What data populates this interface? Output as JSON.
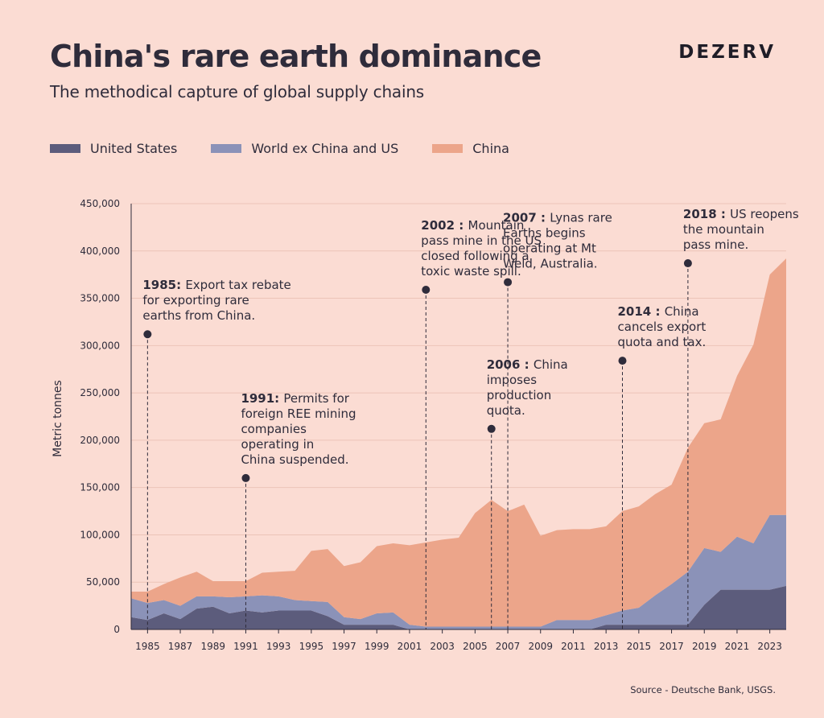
{
  "header": {
    "title": "China's rare earth dominance",
    "subtitle": "The methodical capture of global supply chains",
    "brand": "DEZERV"
  },
  "legend": [
    {
      "name": "United States",
      "color": "#5c5c7c"
    },
    {
      "name": "World ex China and US",
      "color": "#8b92b8"
    },
    {
      "name": "China",
      "color": "#eca58a"
    }
  ],
  "source": "Source - Deutsche Bank, USGS.",
  "chart_data": {
    "type": "area",
    "stacked": true,
    "ylabel": "Metric tonnes",
    "xlabel": "",
    "ylim": [
      0,
      450000
    ],
    "yticks": [
      0,
      50000,
      100000,
      150000,
      200000,
      250000,
      300000,
      350000,
      400000,
      450000
    ],
    "ytick_labels": [
      "0",
      "50,000",
      "100,000",
      "150,000",
      "200,000",
      "250,000",
      "300,000",
      "350,000",
      "400,000",
      "450,000"
    ],
    "xlim": [
      1984,
      2024
    ],
    "xticks": [
      1985,
      1987,
      1989,
      1991,
      1993,
      1995,
      1997,
      1999,
      2001,
      2003,
      2005,
      2007,
      2009,
      2011,
      2013,
      2015,
      2017,
      2019,
      2021,
      2023
    ],
    "grid": "horizontal",
    "legend_position": "top-left",
    "x": [
      1984,
      1985,
      1986,
      1987,
      1988,
      1989,
      1990,
      1991,
      1992,
      1993,
      1994,
      1995,
      1996,
      1997,
      1998,
      1999,
      2000,
      2001,
      2002,
      2003,
      2004,
      2005,
      2006,
      2007,
      2008,
      2009,
      2010,
      2011,
      2012,
      2013,
      2014,
      2015,
      2016,
      2017,
      2018,
      2019,
      2020,
      2021,
      2022,
      2023,
      2024
    ],
    "series": [
      {
        "name": "United States",
        "color": "#5c5c7c",
        "values": [
          13000,
          10000,
          17000,
          11000,
          22000,
          24000,
          17000,
          20000,
          18000,
          20000,
          20000,
          20000,
          14000,
          5000,
          5000,
          5000,
          5000,
          0,
          0,
          0,
          0,
          0,
          0,
          0,
          0,
          0,
          0,
          0,
          0,
          5000,
          5000,
          5000,
          5000,
          5000,
          5000,
          26000,
          42000,
          42000,
          42000,
          42000,
          46000
        ]
      },
      {
        "name": "World ex China and US",
        "color": "#8b92b8",
        "values": [
          20000,
          18000,
          14000,
          14000,
          13000,
          11000,
          17000,
          15000,
          18000,
          15000,
          11000,
          10000,
          15000,
          8000,
          6000,
          12000,
          13000,
          5000,
          3000,
          3000,
          3000,
          3000,
          3000,
          3000,
          3000,
          3000,
          10000,
          10000,
          10000,
          10000,
          15000,
          18000,
          31000,
          43000,
          56000,
          60000,
          40000,
          56000,
          49000,
          79000,
          75000
        ]
      },
      {
        "name": "China",
        "color": "#eca58a",
        "values": [
          7000,
          12000,
          17000,
          30000,
          26000,
          16000,
          17000,
          16000,
          24000,
          26000,
          31000,
          53000,
          56000,
          54000,
          60000,
          71000,
          73000,
          84000,
          89000,
          92000,
          94000,
          120000,
          134000,
          122000,
          129000,
          96000,
          95000,
          96000,
          96000,
          94000,
          105000,
          107000,
          107000,
          105000,
          131000,
          132000,
          140000,
          170000,
          210000,
          254000,
          271000
        ]
      }
    ],
    "annotations": [
      {
        "year": 1985,
        "value": 312000,
        "label_year": "1985:",
        "lines": [
          "Export tax rebate",
          "for exporting rare",
          "earths from China."
        ]
      },
      {
        "year": 1991,
        "value": 160000,
        "label_year": "1991:",
        "lines": [
          "Permits for",
          "foreign REE mining",
          "companies",
          "operating in",
          "China suspended."
        ]
      },
      {
        "year": 2002,
        "value": 359000,
        "label_year": "2002 :",
        "lines": [
          "Mountain",
          "pass mine in the US",
          "closed following a",
          "toxic waste spill."
        ]
      },
      {
        "year": 2006,
        "value": 212000,
        "label_year": "2006 :",
        "lines": [
          "China",
          "imposes",
          "production",
          "quota."
        ]
      },
      {
        "year": 2007,
        "value": 367000,
        "label_year": "2007 :",
        "lines": [
          "Lynas rare",
          "Earths begins",
          "operating at Mt",
          "Weld, Australia."
        ]
      },
      {
        "year": 2014,
        "value": 284000,
        "label_year": "2014 :",
        "lines": [
          "China",
          "cancels export",
          "quota and tax."
        ]
      },
      {
        "year": 2018,
        "value": 387000,
        "label_year": "2018 :",
        "lines": [
          "US reopens",
          "the mountain",
          "pass mine."
        ]
      }
    ]
  }
}
